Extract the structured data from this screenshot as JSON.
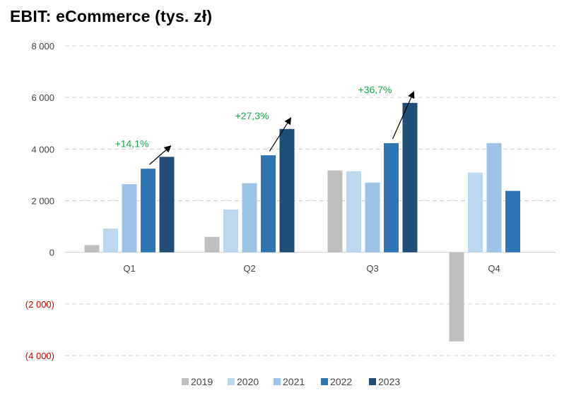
{
  "chart_data": {
    "type": "bar",
    "title": "EBIT: eCommerce (tys. zł)",
    "categories": [
      "Q1",
      "Q2",
      "Q3",
      "Q4"
    ],
    "series": [
      {
        "name": "2019",
        "color": "#bfbfbf",
        "values": [
          280,
          600,
          3170,
          -3450
        ]
      },
      {
        "name": "2020",
        "color": "#bdd7ee",
        "values": [
          920,
          1660,
          3140,
          3090
        ]
      },
      {
        "name": "2021",
        "color": "#9dc3e6",
        "values": [
          2640,
          2680,
          2700,
          4230
        ]
      },
      {
        "name": "2022",
        "color": "#2e75b6",
        "values": [
          3240,
          3760,
          4230,
          2380
        ]
      },
      {
        "name": "2023",
        "color": "#1f4e79",
        "values": [
          3700,
          4780,
          5790,
          null
        ]
      }
    ],
    "yticks": [
      8000,
      6000,
      4000,
      2000,
      0,
      -2000,
      -4000
    ],
    "ytick_labels": [
      "8 000",
      "6 000",
      "4 000",
      "2 000",
      "0",
      "(2 000)",
      "(4 000)"
    ],
    "ylim": [
      -4000,
      8000
    ],
    "grid": true,
    "legend_position": "bottom",
    "annotations": [
      {
        "category": "Q1",
        "text": "+14,1%",
        "color": "#1aa84a"
      },
      {
        "category": "Q2",
        "text": "+27,3%",
        "color": "#1aa84a"
      },
      {
        "category": "Q3",
        "text": "+36,7%",
        "color": "#1aa84a"
      }
    ]
  }
}
